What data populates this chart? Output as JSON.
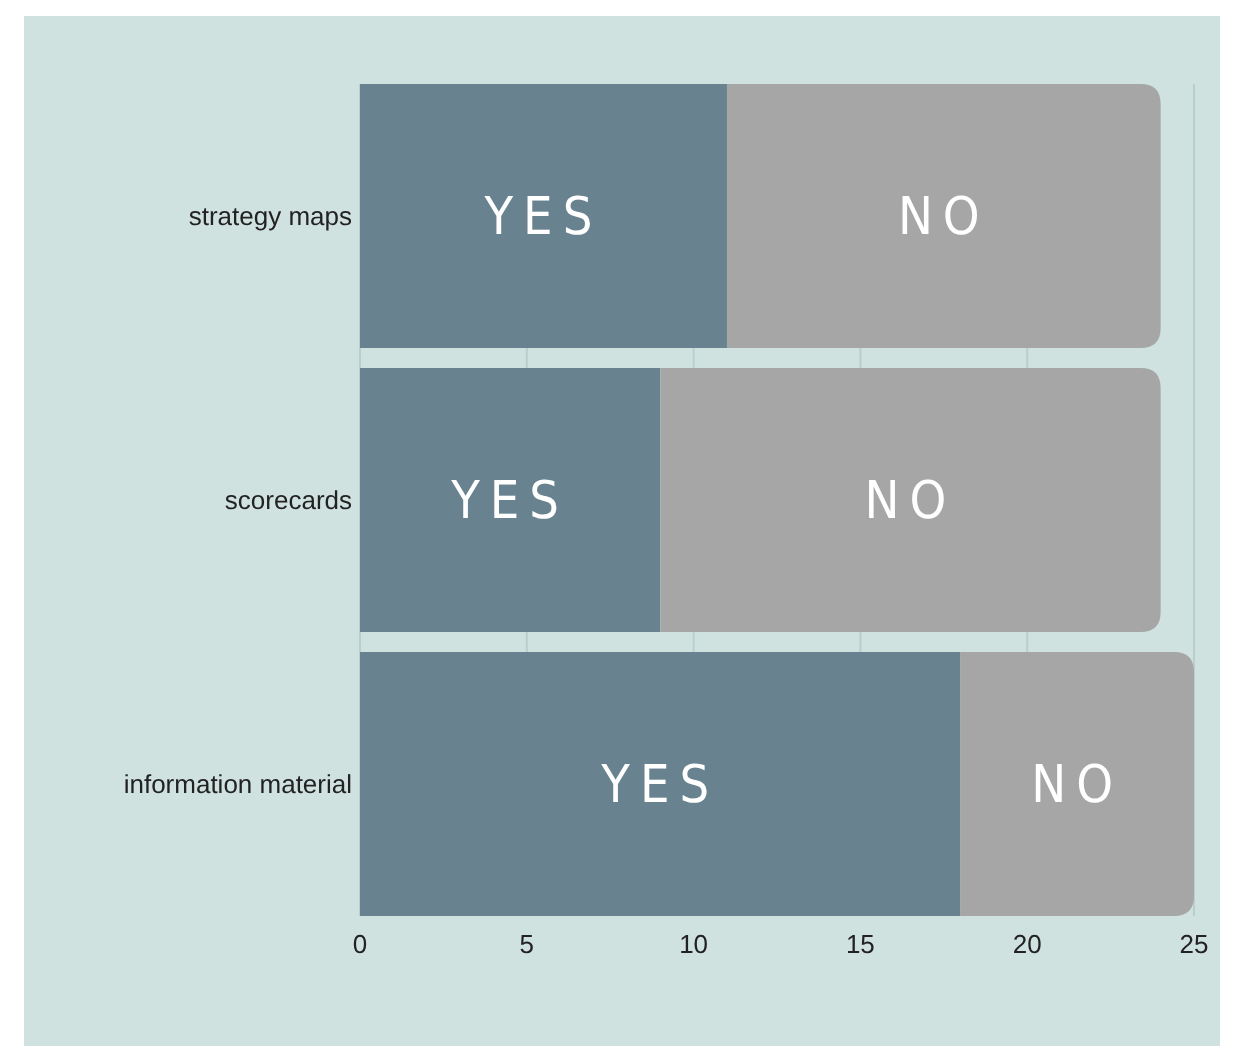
{
  "chart_data": {
    "type": "bar",
    "orientation": "horizontal",
    "stacked": true,
    "categories": [
      "strategy maps",
      "scorecards",
      "information material"
    ],
    "series": [
      {
        "name": "YES",
        "color": "#68838f",
        "values": [
          11,
          9,
          18
        ]
      },
      {
        "name": "NO",
        "color": "#a6a6a6",
        "values": [
          13,
          15,
          7
        ]
      }
    ],
    "xlim": [
      0,
      25
    ],
    "xticks": [
      0,
      5,
      10,
      15,
      20,
      25
    ],
    "grid": "x"
  }
}
